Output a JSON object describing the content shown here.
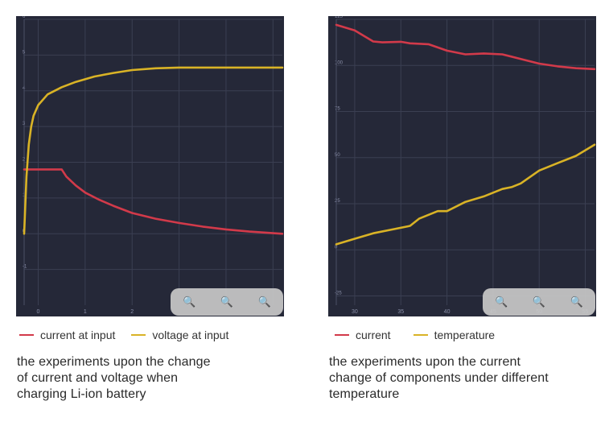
{
  "colors": {
    "background": "#252838",
    "grid": "#3b3f52",
    "current": "#d23a4a",
    "voltage": "#d9b326",
    "temperature": "#d9b326"
  },
  "left": {
    "legend": [
      {
        "label": "current at input",
        "color": "#d23a4a"
      },
      {
        "label": "voltage at input",
        "color": "#d9b326"
      }
    ],
    "caption": "the experiments upon the change\nof current and voltage when\ncharging Li-ion battery",
    "zoom": [
      {
        "icon": "zoom-in-icon"
      },
      {
        "icon": "zoom-out-icon"
      },
      {
        "icon": "zoom-reset-icon"
      }
    ]
  },
  "right": {
    "legend": [
      {
        "label": "current",
        "color": "#d23a4a"
      },
      {
        "label": "temperature",
        "color": "#d9b326"
      }
    ],
    "caption": "the experiments upon the current\nchange of components under different\ntemperature",
    "zoom": [
      {
        "icon": "zoom-in-icon"
      },
      {
        "icon": "zoom-out-icon"
      },
      {
        "icon": "zoom-reset-icon"
      }
    ]
  },
  "chart_data": [
    {
      "type": "line",
      "title": "",
      "xlabel": "",
      "ylabel": "",
      "xlim": [
        -0.3,
        5.2
      ],
      "ylim": [
        -2,
        6
      ],
      "xticks": [
        0,
        1,
        2,
        3,
        4,
        5
      ],
      "xtick_labels": [
        "0",
        "1",
        "2",
        "",
        "",
        ""
      ],
      "yticks": [
        -1,
        0,
        1,
        2,
        3,
        4,
        5,
        6
      ],
      "ytick_labels": [
        "-1",
        "0",
        "1",
        "2",
        "3",
        "4",
        "5",
        "6"
      ],
      "grid": true,
      "legend_position": "bottom",
      "series": [
        {
          "name": "current at input",
          "color": "#d23a4a",
          "x": [
            -0.3,
            0.0,
            0.3,
            0.5,
            0.6,
            0.8,
            1.0,
            1.3,
            1.6,
            2.0,
            2.5,
            3.0,
            3.5,
            4.0,
            4.5,
            5.2
          ],
          "y": [
            1.8,
            1.8,
            1.8,
            1.8,
            1.6,
            1.35,
            1.15,
            0.95,
            0.78,
            0.58,
            0.42,
            0.3,
            0.2,
            0.12,
            0.06,
            0.0
          ]
        },
        {
          "name": "voltage at input",
          "color": "#d9b326",
          "x": [
            -0.3,
            -0.25,
            -0.2,
            -0.15,
            -0.1,
            0.0,
            0.2,
            0.5,
            0.8,
            1.2,
            1.6,
            2.0,
            2.5,
            3.0,
            4.0,
            5.2
          ],
          "y": [
            0.0,
            1.6,
            2.5,
            3.0,
            3.3,
            3.6,
            3.9,
            4.1,
            4.25,
            4.4,
            4.5,
            4.58,
            4.63,
            4.65,
            4.65,
            4.65
          ]
        }
      ]
    },
    {
      "type": "line",
      "title": "",
      "xlabel": "",
      "ylabel": "",
      "xlim": [
        28,
        56
      ],
      "ylim": [
        -30,
        125
      ],
      "xticks": [
        30,
        35,
        40,
        45,
        50,
        55
      ],
      "xtick_labels": [
        "30",
        "35",
        "40",
        "45",
        "50",
        "55"
      ],
      "yticks": [
        -25,
        0,
        25,
        50,
        75,
        100,
        125
      ],
      "ytick_labels": [
        "-25",
        "0",
        "25",
        "50",
        "75",
        "100",
        "125"
      ],
      "grid": true,
      "legend_position": "bottom",
      "series": [
        {
          "name": "current",
          "color": "#d23a4a",
          "x": [
            28,
            30,
            31,
            32,
            33,
            35,
            36,
            38,
            40,
            42,
            44,
            46,
            48,
            50,
            52,
            54,
            56
          ],
          "y": [
            122,
            119,
            116,
            113,
            112.5,
            112.8,
            112,
            111.5,
            108,
            106,
            106.5,
            106,
            103.5,
            101,
            99.5,
            98.5,
            98
          ]
        },
        {
          "name": "temperature",
          "color": "#d9b326",
          "x": [
            28,
            30,
            32,
            34,
            36,
            37,
            39,
            40,
            42,
            44,
            45,
            46,
            47,
            48,
            50,
            52,
            54,
            56
          ],
          "y": [
            3,
            6,
            9,
            11,
            13,
            17,
            21,
            21,
            26,
            29,
            31,
            33,
            34,
            36,
            43,
            47,
            51,
            57
          ]
        }
      ]
    }
  ]
}
